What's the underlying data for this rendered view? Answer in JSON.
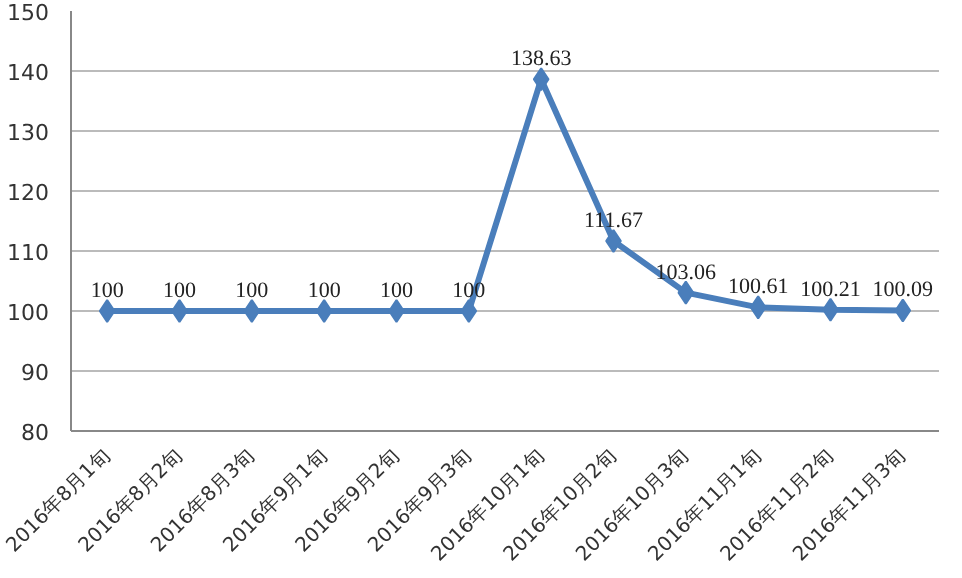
{
  "chart_data": {
    "type": "line",
    "categories": [
      "2016年8月1旬",
      "2016年8月2旬",
      "2016年8月3旬",
      "2016年9月1旬",
      "2016年9月2旬",
      "2016年9月3旬",
      "2016年10月1旬",
      "2016年10月2旬",
      "2016年10月3旬",
      "2016年11月1旬",
      "2016年11月2旬",
      "2016年11月3旬"
    ],
    "series": [
      {
        "color": "#4a7ebb",
        "values": [
          100,
          100,
          100,
          100,
          100,
          100,
          138.63,
          111.67,
          103.06,
          100.61,
          100.21,
          100.09
        ]
      }
    ],
    "ylim": [
      80,
      150
    ],
    "yticks": [
      80,
      90,
      100,
      110,
      120,
      130,
      140,
      150
    ],
    "grid": "y",
    "marker": "diamond",
    "line_style": "solid",
    "data_labels": true
  }
}
